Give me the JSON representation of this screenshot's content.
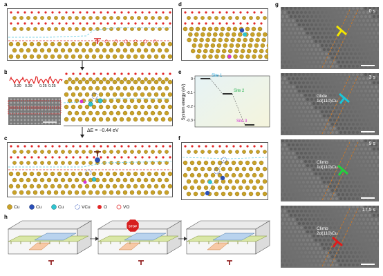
{
  "panel_letters": {
    "a": "a",
    "b": "b",
    "c": "c",
    "d": "d",
    "e": "e",
    "f": "f",
    "g": "g",
    "h": "h"
  },
  "panel_b": {
    "peak_values": [
      "0.30",
      "0.39",
      "0.25",
      "0.25"
    ]
  },
  "energy_delta": "ΔE = −0.44 eV",
  "chart_data": {
    "type": "line",
    "xlabel": "",
    "ylabel": "System energy (eV)",
    "ylim": [
      -0.35,
      0.02
    ],
    "yticks": [
      "0",
      "-0.1",
      "-0.2",
      "-0.3"
    ],
    "ytick_values": [
      0,
      -0.1,
      -0.2,
      -0.3
    ],
    "points": [
      {
        "label": "Site 1",
        "x": 1,
        "y": 0.0
      },
      {
        "label": "Site 2",
        "x": 2,
        "y": -0.11
      },
      {
        "label": "Site 3",
        "x": 3,
        "y": -0.335
      }
    ],
    "colors": {
      "site1": "#19a0d8",
      "site2": "#22b14c",
      "site3": "#d633d6"
    }
  },
  "panel_g": {
    "frames": [
      {
        "time": "0 s",
        "label": "",
        "sublabel": "",
        "marker_color": "#f2e600"
      },
      {
        "time": "3 s",
        "label": "Glide",
        "sublabel": "1d(110)Cu",
        "marker_color": "#19c6d9"
      },
      {
        "time": "9 s",
        "label": "Climb",
        "sublabel": "1d(110)Cu",
        "marker_color": "#22d13c"
      },
      {
        "time": "17.5 s",
        "label": "Climb",
        "sublabel": "2d(110)Cu",
        "marker_color": "#e01b1b"
      }
    ]
  },
  "legend": {
    "cu_gold": "Cu",
    "cu_blue": "Cu",
    "cu_cyan": "Cu",
    "v_cu": "VCu",
    "o": "O",
    "v_o": "VO"
  },
  "panel_h": {
    "stop_sign": "STOP"
  },
  "colors": {
    "cu": "#c9a227",
    "cu_blue": "#2a4fb8",
    "cu_cyan": "#2fc4d0",
    "oxygen": "#e12626",
    "interface_line": "#7fd3e6"
  }
}
